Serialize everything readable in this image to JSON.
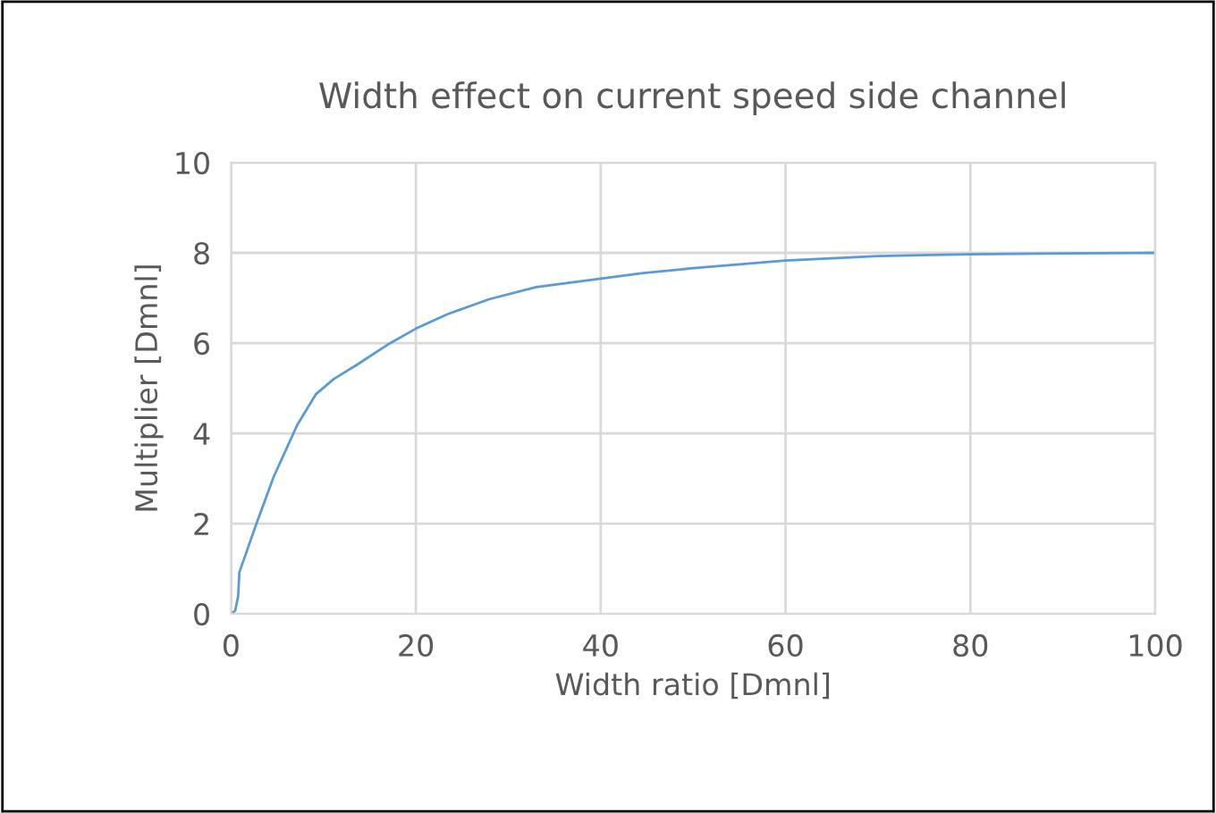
{
  "chart_data": {
    "type": "line",
    "title": "Width effect on current speed side channel",
    "xlabel": "Width ratio [Dmnl]",
    "ylabel": "Multiplier [Dmnl]",
    "series": [
      {
        "color": "#5b9bd5",
        "x": [
          0,
          0.45,
          0.77,
          0.9,
          2.7,
          4.6,
          7.2,
          9.2,
          11.1,
          13.7,
          16.9,
          20,
          23.4,
          27.9,
          33,
          40,
          44.6,
          50,
          60,
          70,
          80,
          90,
          100
        ],
        "values": [
          0,
          0.07,
          0.39,
          0.92,
          1.97,
          3.03,
          4.2,
          4.87,
          5.2,
          5.53,
          5.96,
          6.32,
          6.64,
          6.97,
          7.24,
          7.43,
          7.55,
          7.66,
          7.83,
          7.93,
          7.97,
          7.99,
          8.0
        ]
      }
    ],
    "xlim": [
      0,
      100
    ],
    "xticks": [
      0,
      20,
      40,
      60,
      80,
      100
    ],
    "ylim": [
      0,
      10
    ],
    "yticks": [
      0,
      2,
      4,
      6,
      8,
      10
    ],
    "grid": true,
    "marker": "none",
    "line_style": "solid"
  }
}
